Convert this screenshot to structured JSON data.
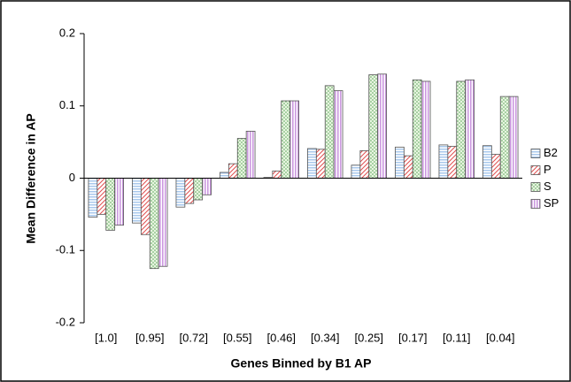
{
  "chart_data": {
    "type": "bar",
    "x_label": "Genes Binned by B1 AP",
    "y_label": "Mean Difference in AP",
    "categories": [
      "[1.0]",
      "[0.95]",
      "[0.72]",
      "[0.55]",
      "[0.46]",
      "[0.34]",
      "[0.25]",
      "[0.17]",
      "[0.11]",
      "[0.04]"
    ],
    "series": [
      {
        "name": "B2",
        "color": "#a8c8ec",
        "pattern": "hlines",
        "values": [
          -0.054,
          -0.062,
          -0.04,
          0.008,
          0.001,
          0.041,
          0.018,
          0.043,
          0.046,
          0.045
        ]
      },
      {
        "name": "P",
        "color": "#e05050",
        "pattern": "diagonal",
        "values": [
          -0.05,
          -0.078,
          -0.035,
          0.02,
          0.01,
          0.04,
          0.038,
          0.031,
          0.044,
          0.033
        ]
      },
      {
        "name": "S",
        "color": "#5aa55a",
        "pattern": "dots",
        "values": [
          -0.072,
          -0.125,
          -0.03,
          0.055,
          0.107,
          0.128,
          0.143,
          0.136,
          0.134,
          0.113
        ]
      },
      {
        "name": "SP",
        "color": "#cc99e0",
        "pattern": "vlines",
        "values": [
          -0.065,
          -0.122,
          -0.023,
          0.065,
          0.107,
          0.121,
          0.144,
          0.134,
          0.136,
          0.113
        ]
      }
    ],
    "ylim": [
      -0.2,
      0.2
    ],
    "yticks": [
      -0.2,
      -0.1,
      0,
      0.1,
      0.2
    ],
    "legend": "right",
    "grid": false
  }
}
